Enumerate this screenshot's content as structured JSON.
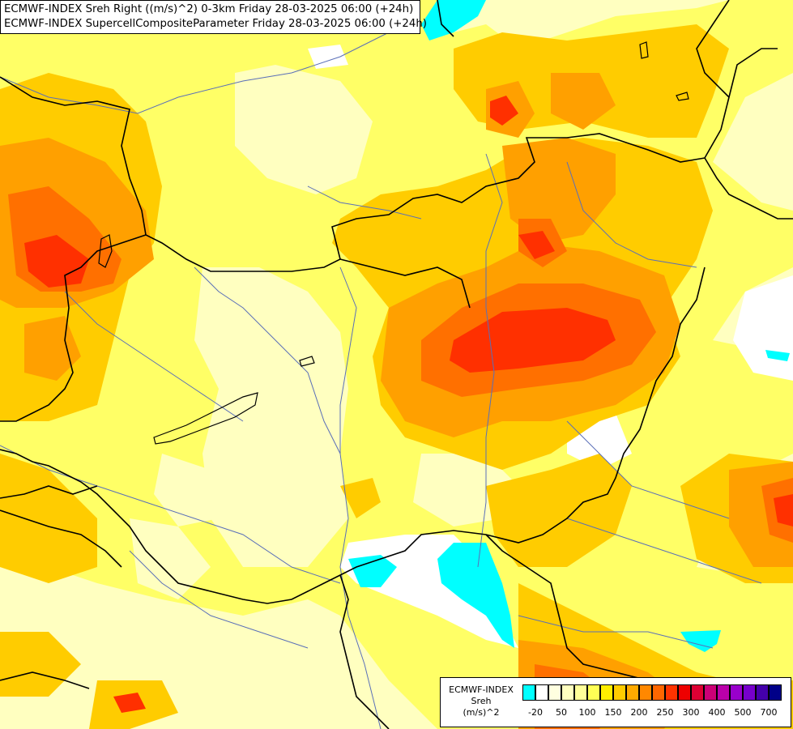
{
  "header": {
    "line1": "ECMWF-INDEX Sreh Right ((m/s)^2) 0-3km Friday 28-03-2025 06:00 (+24h)",
    "line2": "ECMWF-INDEX SupercellCompositeParameter Friday 28-03-2025 06:00 (+24h)"
  },
  "legend": {
    "line1": "ECMWF-INDEX",
    "line2": "Sreh",
    "line3": "(m/s)^2",
    "swatch_colors": [
      "#00ffff",
      "#ffffff",
      "#ffffe0",
      "#ffffc0",
      "#ffff99",
      "#ffff55",
      "#ffee00",
      "#ffcc00",
      "#ffaa00",
      "#ff8800",
      "#ff6600",
      "#ff3300",
      "#ee0000",
      "#dd0033",
      "#cc0077",
      "#bb00aa",
      "#9900cc",
      "#7700cc",
      "#4400aa",
      "#000088"
    ],
    "tick_labels": [
      "-20",
      "50",
      "100",
      "150",
      "200",
      "250",
      "300",
      "400",
      "500",
      "700"
    ]
  },
  "colors": {
    "cyan": "#00ffff",
    "pale_yellow": "#ffffc0",
    "yellow": "#ffff66",
    "gold": "#ffcc00",
    "orange": "#ffa000",
    "dark_orange": "#ff7000",
    "red": "#ff3000"
  }
}
